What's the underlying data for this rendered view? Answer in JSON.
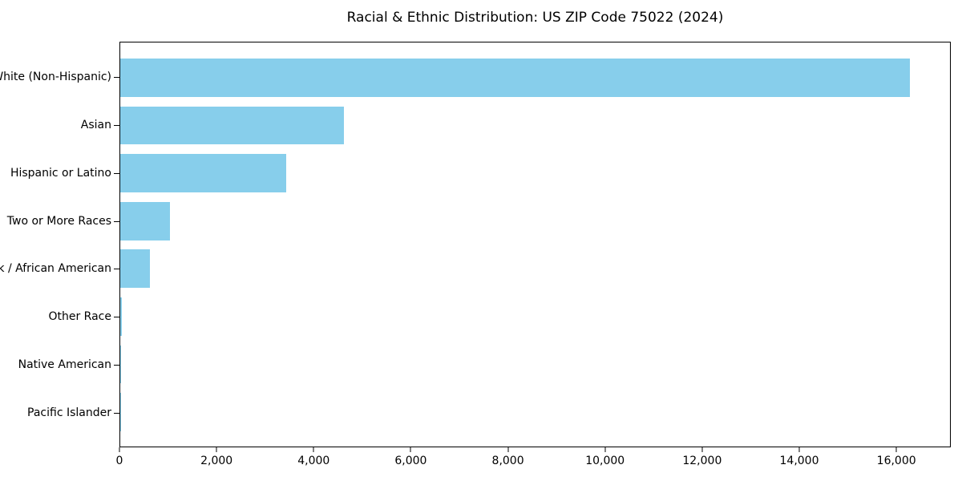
{
  "title": "Racial & Ethnic Distribution: US ZIP Code 75022 (2024)",
  "chart_data": {
    "type": "bar",
    "orientation": "horizontal",
    "title": "Racial & Ethnic Distribution: US ZIP Code 75022 (2024)",
    "categories": [
      "White (Non-Hispanic)",
      "Asian",
      "Hispanic or Latino",
      "Two or More Races",
      "Black / African American",
      "Other Race",
      "Native American",
      "Pacific Islander"
    ],
    "values": [
      16300,
      4610,
      3430,
      1020,
      610,
      25,
      12,
      5
    ],
    "xlabel": "",
    "ylabel": "",
    "xlim": [
      0,
      17120
    ],
    "x_ticks": [
      {
        "value": 0,
        "label": "0"
      },
      {
        "value": 2000,
        "label": "2,000"
      },
      {
        "value": 4000,
        "label": "4,000"
      },
      {
        "value": 6000,
        "label": "6,000"
      },
      {
        "value": 8000,
        "label": "8,000"
      },
      {
        "value": 10000,
        "label": "10,000"
      },
      {
        "value": 12000,
        "label": "12,000"
      },
      {
        "value": 14000,
        "label": "14,000"
      },
      {
        "value": 16000,
        "label": "16,000"
      }
    ],
    "grid": false,
    "legend": false,
    "bar_color": "#87CEEB",
    "axis_color": "#000000",
    "text_color": "#000000",
    "background": "#FFFFFF"
  }
}
